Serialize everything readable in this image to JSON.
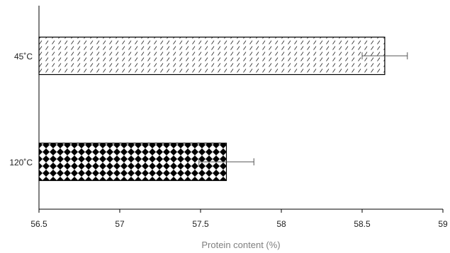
{
  "chart_data": {
    "type": "bar",
    "orientation": "horizontal",
    "categories": [
      "45˚C",
      "120˚C"
    ],
    "values": [
      58.64,
      57.66
    ],
    "errors": [
      0.14,
      0.17
    ],
    "patterns": [
      "diagonal-dashes",
      "diamond-checker"
    ],
    "title": "",
    "xlabel": "Protein content (%)",
    "ylabel": "",
    "xlim": [
      56.5,
      59
    ],
    "xticks": [
      "56.5",
      "57",
      "57.5",
      "58",
      "58.5",
      "59"
    ],
    "grid": false,
    "legend": "none"
  }
}
